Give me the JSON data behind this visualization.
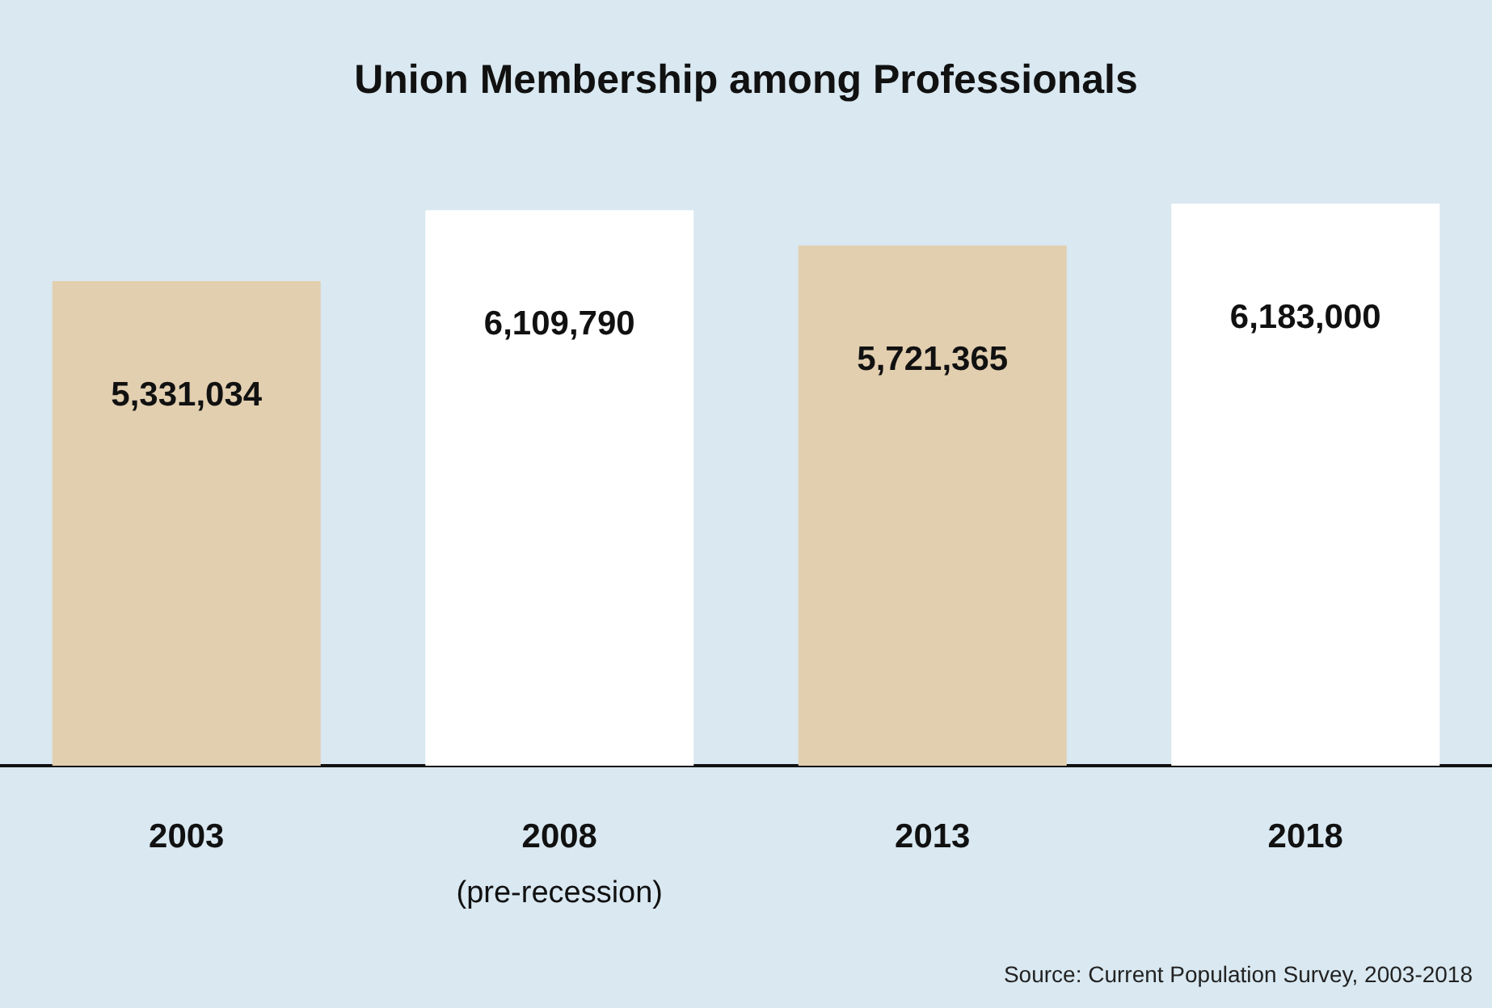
{
  "chart_data": {
    "type": "bar",
    "title": "Union Membership among Professionals",
    "categories": [
      "2003",
      "2008\n(pre-recession)",
      "2013",
      "2018"
    ],
    "values": [
      5331034,
      6109790,
      5721365,
      6183000
    ],
    "colors": [
      "#e2cfb0",
      "#ffffff",
      "#e2cfb0",
      "#ffffff"
    ],
    "value_labels": [
      "5,331,034",
      "6,109,790",
      "5,721,365",
      "6,183,000"
    ],
    "annotations": [
      "Source: Current Population Survey, 2003-2018"
    ]
  }
}
